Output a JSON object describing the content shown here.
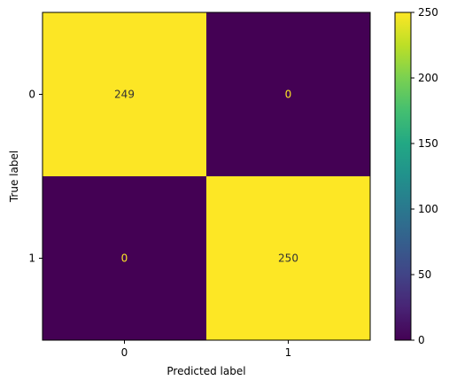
{
  "chart_data": {
    "type": "heatmap",
    "title": "",
    "xlabel": "Predicted label",
    "ylabel": "True label",
    "x_categories": [
      "0",
      "1"
    ],
    "y_categories": [
      "0",
      "1"
    ],
    "values": [
      [
        249,
        0
      ],
      [
        0,
        250
      ]
    ],
    "cell_labels": [
      [
        "249",
        "0"
      ],
      [
        "0",
        "250"
      ]
    ],
    "colormap": "viridis",
    "colorbar": {
      "range": [
        0,
        250
      ],
      "ticks": [
        0,
        50,
        100,
        150,
        200,
        250
      ],
      "tick_labels": [
        "0",
        "50",
        "100",
        "150",
        "200",
        "250"
      ]
    },
    "colors": {
      "high": "#fde725",
      "low": "#440154",
      "label_on_high": "#440154",
      "label_on_low": "#fde725"
    },
    "grid": false
  }
}
